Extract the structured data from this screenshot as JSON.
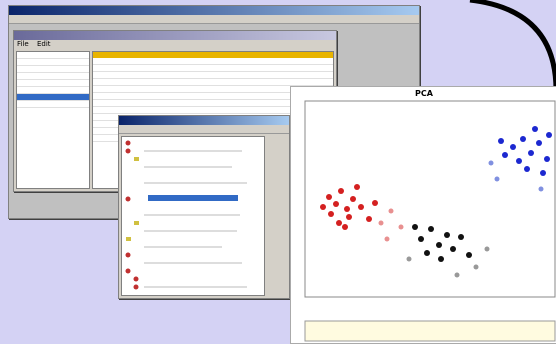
{
  "main_window": {
    "menu": [
      "File",
      "Edit"
    ]
  },
  "plot_window": {
    "title": "PCA"
  }
}
